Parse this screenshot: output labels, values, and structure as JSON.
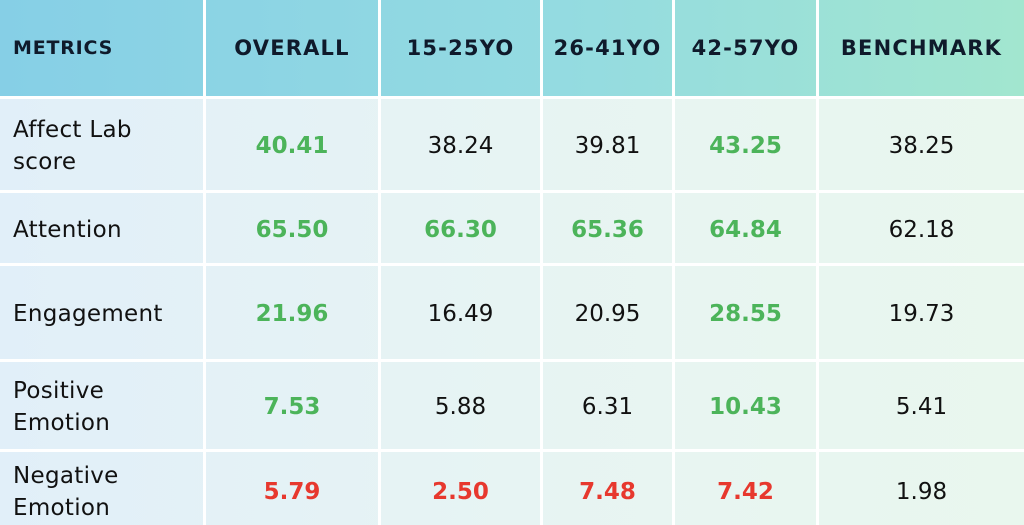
{
  "chart_data": {
    "type": "table",
    "columns": [
      "METRICS",
      "OVERALL",
      "15-25YO",
      "26-41YO",
      "42-57YO",
      "BENCHMARK"
    ],
    "rows": [
      {
        "metric": "Affect Lab\nscore",
        "values": [
          "40.41",
          "38.24",
          "39.81",
          "43.25",
          "38.25"
        ],
        "status": [
          "good",
          "neutral",
          "neutral",
          "good",
          "neutral"
        ]
      },
      {
        "metric": "Attention",
        "values": [
          "65.50",
          "66.30",
          "65.36",
          "64.84",
          "62.18"
        ],
        "status": [
          "good",
          "good",
          "good",
          "good",
          "neutral"
        ]
      },
      {
        "metric": "Engagement",
        "values": [
          "21.96",
          "16.49",
          "20.95",
          "28.55",
          "19.73"
        ],
        "status": [
          "good",
          "neutral",
          "neutral",
          "good",
          "neutral"
        ]
      },
      {
        "metric": "Positive\nEmotion",
        "values": [
          "7.53",
          "5.88",
          "6.31",
          "10.43",
          "5.41"
        ],
        "status": [
          "good",
          "neutral",
          "neutral",
          "good",
          "neutral"
        ]
      },
      {
        "metric": "Negative\nEmotion",
        "values": [
          "5.79",
          "2.50",
          "7.48",
          "7.42",
          "1.98"
        ],
        "status": [
          "bad",
          "bad",
          "bad",
          "bad",
          "neutral"
        ]
      }
    ],
    "colors": {
      "good": "#4cb45a",
      "bad": "#e7382e",
      "neutral": "#111111",
      "header_left": "#86cfe6",
      "header_right": "#a2e6cf"
    }
  }
}
